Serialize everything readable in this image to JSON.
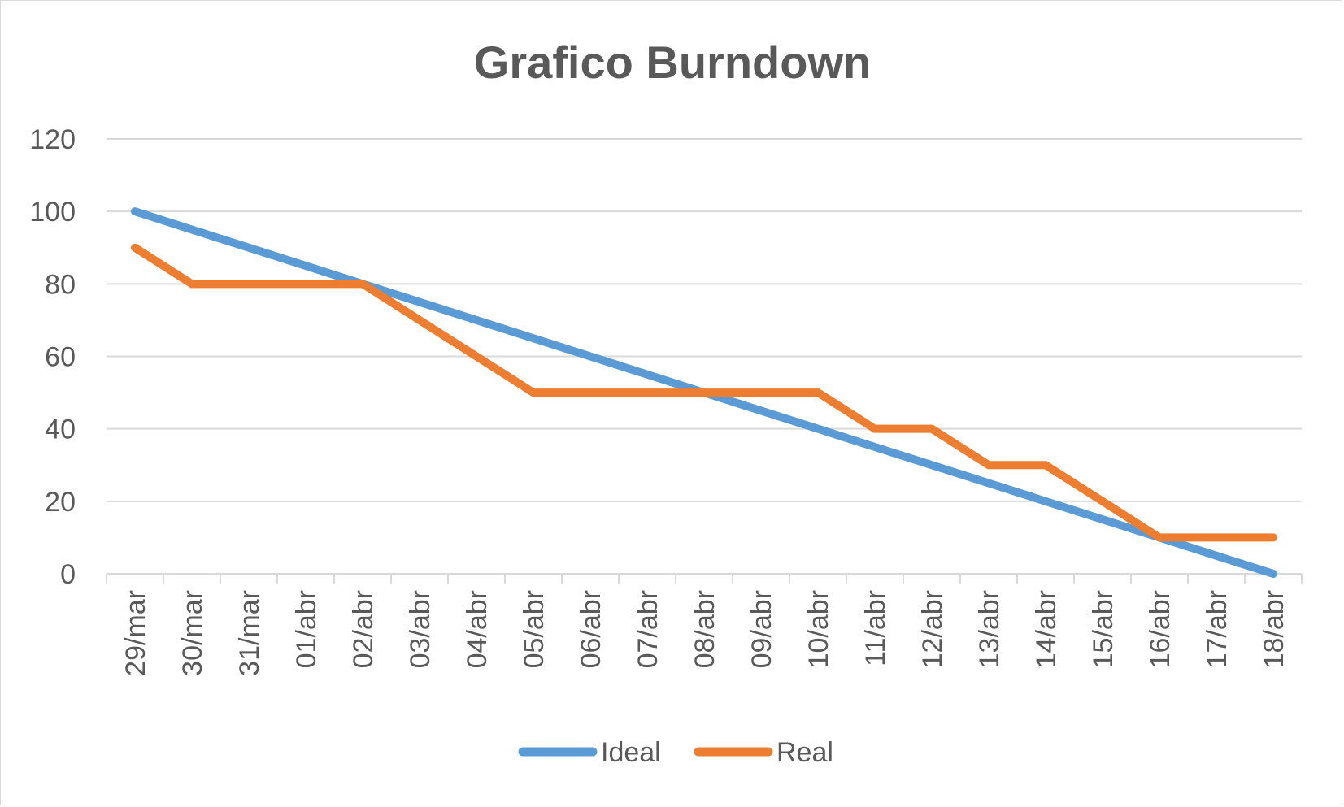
{
  "chart_data": {
    "type": "line",
    "title": "Grafico Burndown",
    "xlabel": "",
    "ylabel": "",
    "ylim": [
      0,
      120
    ],
    "yticks": [
      "0",
      "20",
      "40",
      "60",
      "80",
      "100",
      "120"
    ],
    "grid": true,
    "legend": "bottom",
    "categories": [
      "29/mar",
      "30/mar",
      "31/mar",
      "01/abr",
      "02/abr",
      "03/abr",
      "04/abr",
      "05/abr",
      "06/abr",
      "07/abr",
      "08/abr",
      "09/abr",
      "10/abr",
      "11/abr",
      "12/abr",
      "13/abr",
      "14/abr",
      "15/abr",
      "16/abr",
      "17/abr",
      "18/abr"
    ],
    "series": [
      {
        "name": "Ideal",
        "color": "#5b9bd5",
        "values": [
          100,
          95,
          90,
          85,
          80,
          75,
          70,
          65,
          60,
          55,
          50,
          45,
          40,
          35,
          30,
          25,
          20,
          15,
          10,
          5,
          0
        ]
      },
      {
        "name": "Real",
        "color": "#ed7d31",
        "values": [
          90,
          80,
          80,
          80,
          80,
          70,
          60,
          50,
          50,
          50,
          50,
          50,
          50,
          40,
          40,
          30,
          30,
          20,
          10,
          10,
          10
        ]
      }
    ]
  }
}
